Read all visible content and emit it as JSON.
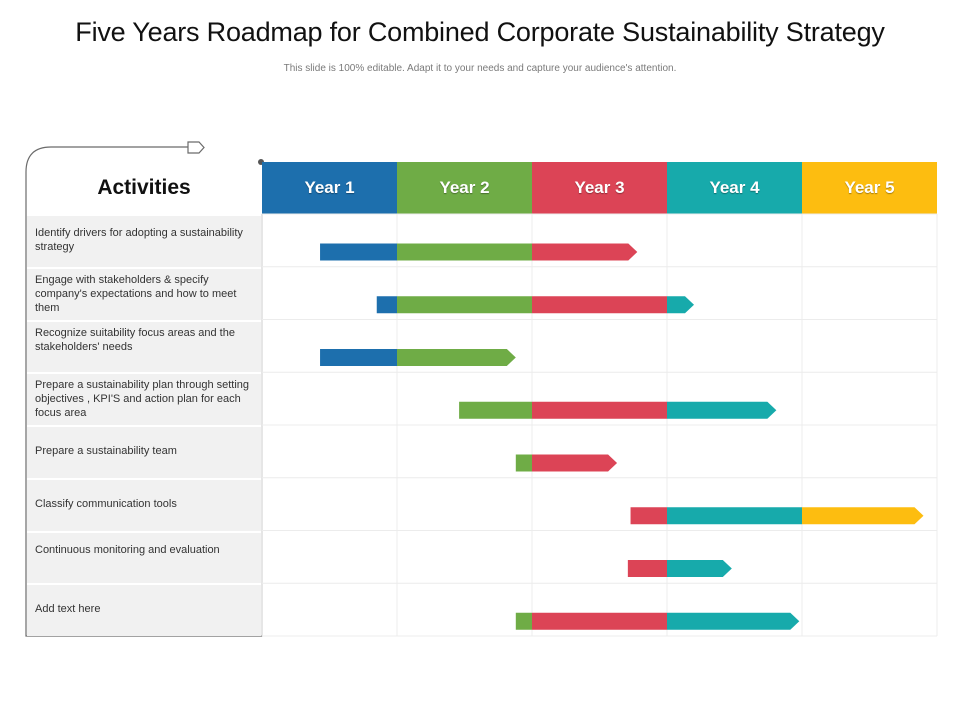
{
  "page": {
    "title": "Five Years Roadmap for Combined Corporate Sustainability Strategy",
    "subtitle": "This slide is 100% editable.  Adapt it to your needs and capture your audience's attention."
  },
  "activities_header": "Activities",
  "years": [
    {
      "label": "Year 1",
      "color": "#1d6fad"
    },
    {
      "label": "Year 2",
      "color": "#6fac46"
    },
    {
      "label": "Year 3",
      "color": "#dc4456"
    },
    {
      "label": "Year 4",
      "color": "#17aaab"
    },
    {
      "label": "Year 5",
      "color": "#fdbd10"
    }
  ],
  "activities": [
    {
      "label": "Identify drivers for adopting a sustainability strategy",
      "start": 0.43,
      "end": 2.78
    },
    {
      "label": "Engage with stakeholders & specify company's expectations and how to meet them",
      "start": 0.85,
      "end": 3.2
    },
    {
      "label": "Recognize suitability focus areas and the stakeholders' needs",
      "start": 0.43,
      "end": 1.88
    },
    {
      "label": "Prepare a sustainability plan through setting objectives , KPI'S and action plan for each focus area",
      "start": 1.46,
      "end": 3.81
    },
    {
      "label": "Prepare a sustainability team",
      "start": 1.88,
      "end": 2.63
    },
    {
      "label": "Classify communication tools",
      "start": 2.73,
      "end": 4.9
    },
    {
      "label": "Continuous monitoring and evaluation",
      "start": 2.71,
      "end": 3.48
    },
    {
      "label": "Add text here",
      "start": 1.88,
      "end": 3.98
    }
  ]
}
